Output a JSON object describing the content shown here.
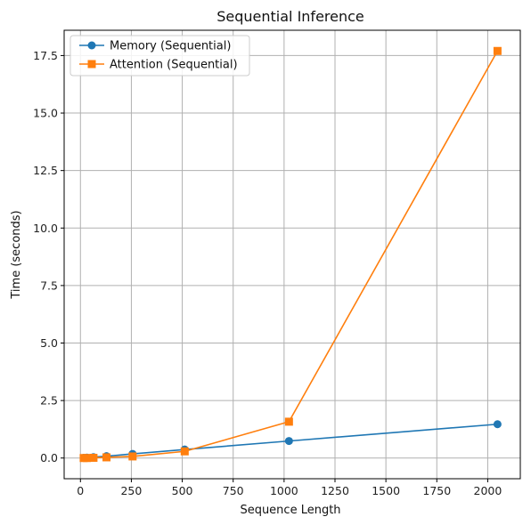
{
  "chart_data": {
    "type": "line",
    "title": "Sequential Inference",
    "xlabel": "Sequence Length",
    "ylabel": "Time (seconds)",
    "xlim": [
      -80,
      2160
    ],
    "ylim": [
      -0.9,
      18.6
    ],
    "xticks": [
      0,
      250,
      500,
      750,
      1000,
      1250,
      1500,
      1750,
      2000
    ],
    "yticks": [
      0.0,
      2.5,
      5.0,
      7.5,
      10.0,
      12.5,
      15.0,
      17.5
    ],
    "xtick_labels": [
      "0",
      "250",
      "500",
      "750",
      "1000",
      "1250",
      "1500",
      "1750",
      "2000"
    ],
    "ytick_labels": [
      "0.0",
      "2.5",
      "5.0",
      "7.5",
      "10.0",
      "12.5",
      "15.0",
      "17.5"
    ],
    "grid": true,
    "legend_position": "top-left",
    "x": [
      16,
      32,
      64,
      128,
      256,
      512,
      1024,
      2048
    ],
    "series": [
      {
        "name": "Memory (Sequential)",
        "color": "#1f77b4",
        "marker": "circle",
        "values": [
          0.01,
          0.02,
          0.04,
          0.08,
          0.18,
          0.37,
          0.74,
          1.47
        ]
      },
      {
        "name": "Attention (Sequential)",
        "color": "#ff7f0e",
        "marker": "square",
        "values": [
          0.0,
          0.0,
          0.01,
          0.03,
          0.07,
          0.29,
          1.58,
          17.7
        ]
      }
    ]
  }
}
